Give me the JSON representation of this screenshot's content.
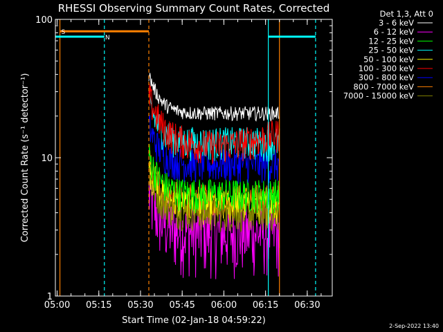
{
  "chart_data": {
    "type": "line",
    "title": "RHESSI Observing Summary Count Rates, Corrected",
    "xlabel": "Start Time (02-Jan-18 04:59:22)",
    "ylabel": "Corrected Count Rate (s⁻¹ detector⁻¹)",
    "y_scale": "log",
    "ylim": [
      1,
      100
    ],
    "xlim": [
      "04:59:22",
      "06:39:00"
    ],
    "x_ticks": [
      "05:00",
      "05:15",
      "05:30",
      "05:45",
      "06:00",
      "06:15",
      "06:30"
    ],
    "y_ticks": [
      "1",
      "10",
      "100"
    ],
    "legend_title": "Det 1,3, Att 0",
    "legend_position": "top-right, outside plot",
    "grid": false,
    "footer_date": "2-Sep-2022 13:40",
    "series": [
      {
        "name": "3 - 6 keV",
        "color": "#ffffff",
        "approx_level": 21
      },
      {
        "name": "6 - 12 keV",
        "color": "#ff00ff",
        "approx_level": 2.9
      },
      {
        "name": "12 - 25 keV",
        "color": "#00ff00",
        "approx_level": 5.5
      },
      {
        "name": "25 - 50 keV",
        "color": "#00ffff",
        "approx_level": 13
      },
      {
        "name": "50 - 100 keV",
        "color": "#ffff00",
        "approx_level": 4.5
      },
      {
        "name": "100 - 300 keV",
        "color": "#ff0000",
        "approx_level": 15
      },
      {
        "name": "300 - 800 keV",
        "color": "#0000ff",
        "approx_level": 9
      },
      {
        "name": "800 - 7000 keV",
        "color": "#ff8000",
        "approx_level": 5
      },
      {
        "name": "7000 - 15000 keV",
        "color": "#808000",
        "approx_level": 4
      }
    ],
    "data_interval": {
      "start": "05:33",
      "end": "06:20"
    },
    "markers": [
      {
        "label": "S",
        "color": "#ff8000",
        "start": "05:01",
        "end": "05:33",
        "level": 82
      },
      {
        "label": "N",
        "color": "#00ffff",
        "start": "04:59:22",
        "end": "05:17",
        "level": 75
      },
      {
        "label": "",
        "color": "#00ffff",
        "start": "06:16",
        "end": "06:33",
        "level": 75
      }
    ],
    "vertical_lines": [
      {
        "time": "05:01",
        "color": "#ff8000",
        "style": "solid"
      },
      {
        "time": "05:17",
        "color": "#00ffff",
        "style": "dashed"
      },
      {
        "time": "05:33",
        "color": "#ff8000",
        "style": "dashed"
      },
      {
        "time": "06:16",
        "color": "#00ffff",
        "style": "solid"
      },
      {
        "time": "06:20",
        "color": "#ff8000",
        "style": "solid"
      },
      {
        "time": "06:33",
        "color": "#00ffff",
        "style": "dashed"
      }
    ]
  }
}
